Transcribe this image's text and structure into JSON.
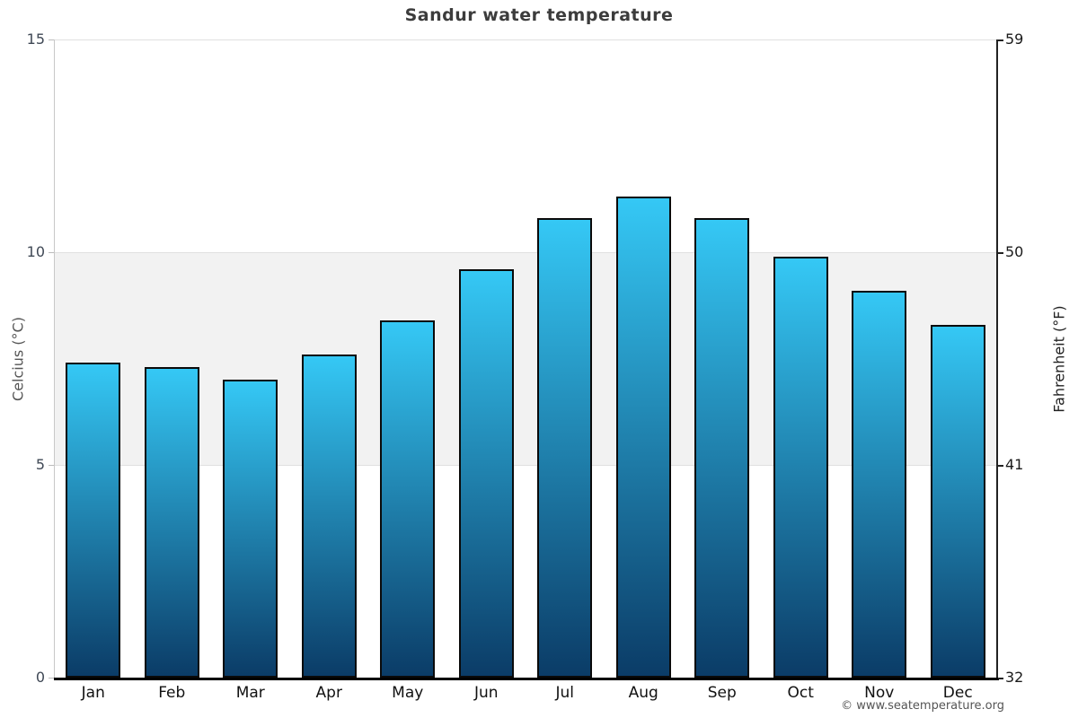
{
  "chart_data": {
    "type": "bar",
    "title": "Sandur water temperature",
    "categories": [
      "Jan",
      "Feb",
      "Mar",
      "Apr",
      "May",
      "Jun",
      "Jul",
      "Aug",
      "Sep",
      "Oct",
      "Nov",
      "Dec"
    ],
    "values": [
      7.4,
      7.3,
      7.0,
      7.6,
      8.4,
      9.6,
      10.8,
      11.3,
      10.8,
      9.9,
      9.1,
      8.3
    ],
    "ylabel_left": "Celcius (°C)",
    "ylabel_right": "Fahrenheit (°F)",
    "ylim": [
      0,
      15
    ],
    "yticks_left": [
      0,
      5,
      10,
      15
    ],
    "yticks_right": [
      32,
      41,
      50,
      59
    ],
    "legend": "none",
    "grid": "horizontal gridlines at 0,5,10,15 with shaded band between 5 and 10",
    "colors": {
      "bar_gradient_top": "#35c8f5",
      "bar_gradient_bottom": "#0b3c67",
      "bar_border": "#0a0a0a",
      "band": "#f2f2f2",
      "gridline": "#e0e0e0",
      "axis_left": "#c8c8c8",
      "axis_right": "#222222",
      "baseline": "#000000",
      "title": "#3c3c3c"
    }
  },
  "footer": {
    "copyright": "© www.seatemperature.org"
  }
}
